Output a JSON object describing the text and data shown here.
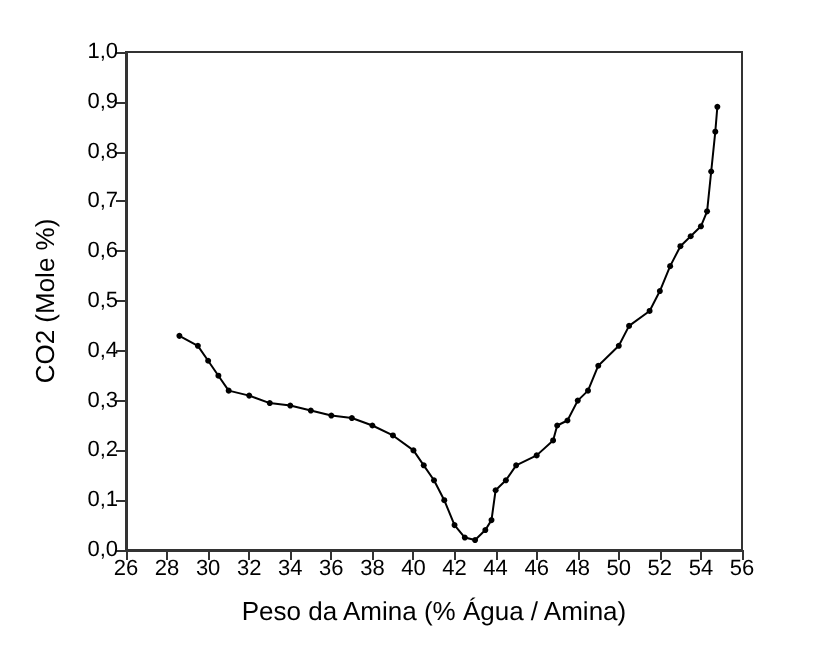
{
  "chart_data": {
    "type": "line",
    "xlabel": "Peso da Amina (% Água / Amina)",
    "ylabel": "CO2 (Mole %)",
    "marker": "circle",
    "line_style": "solid",
    "grid": false,
    "series": [
      {
        "color": "#000000",
        "x": [
          28.6,
          29.5,
          30,
          30.5,
          31,
          32,
          33,
          34,
          35,
          36,
          37,
          38,
          39,
          40,
          40.5,
          41,
          41.5,
          42,
          42.5,
          43,
          43.5,
          43.8,
          44,
          44.5,
          45,
          46,
          46.8,
          47,
          47.5,
          48,
          48.5,
          49,
          50,
          50.5,
          51.5,
          52,
          52.5,
          53,
          53.5,
          54,
          54.3,
          54.5,
          54.7,
          54.8
        ],
        "values": [
          0.43,
          0.41,
          0.38,
          0.35,
          0.32,
          0.31,
          0.295,
          0.29,
          0.28,
          0.27,
          0.265,
          0.25,
          0.23,
          0.2,
          0.17,
          0.14,
          0.1,
          0.05,
          0.025,
          0.02,
          0.04,
          0.06,
          0.12,
          0.14,
          0.17,
          0.19,
          0.22,
          0.25,
          0.26,
          0.3,
          0.32,
          0.37,
          0.41,
          0.45,
          0.48,
          0.52,
          0.57,
          0.61,
          0.63,
          0.65,
          0.68,
          0.76,
          0.84,
          0.89
        ]
      }
    ],
    "xlim": [
      26,
      56
    ],
    "xticks": [
      26,
      28,
      30,
      32,
      34,
      36,
      38,
      40,
      42,
      44,
      46,
      48,
      50,
      52,
      54,
      56
    ],
    "ylim": [
      0,
      1
    ],
    "yticks": [
      {
        "value": 0,
        "label": "0,0"
      },
      {
        "value": 0.1,
        "label": "0,1"
      },
      {
        "value": 0.2,
        "label": "0,2"
      },
      {
        "value": 0.3,
        "label": "0,3"
      },
      {
        "value": 0.4,
        "label": "0,4"
      },
      {
        "value": 0.5,
        "label": "0,5"
      },
      {
        "value": 0.6,
        "label": "0,6"
      },
      {
        "value": 0.7,
        "label": "0,7"
      },
      {
        "value": 0.8,
        "label": "0,8"
      },
      {
        "value": 0.9,
        "label": "0,9"
      },
      {
        "value": 1,
        "label": "1,0"
      }
    ]
  }
}
